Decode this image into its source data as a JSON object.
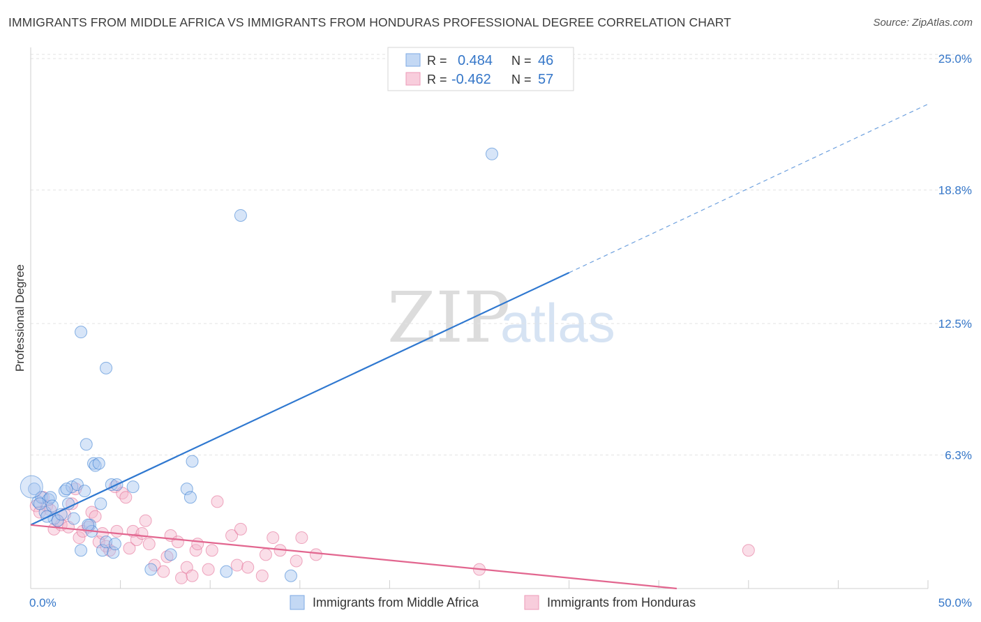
{
  "title": "IMMIGRANTS FROM MIDDLE AFRICA VS IMMIGRANTS FROM HONDURAS PROFESSIONAL DEGREE CORRELATION CHART",
  "source": "Source: ZipAtlas.com",
  "watermark": {
    "part1": "ZIP",
    "part2": "atlas"
  },
  "colors": {
    "blue": "#2f78d0",
    "blue_fill": "#a7c6ef",
    "pink": "#e2668f",
    "pink_fill": "#f3b6cb",
    "value_text": "#3476c8"
  },
  "legend_box": {
    "rows": [
      {
        "r_label": "R =",
        "r_value": "0.484",
        "n_label": "N =",
        "n_value": "46"
      },
      {
        "r_label": "R =",
        "r_value": "-0.462",
        "n_label": "N =",
        "n_value": "57"
      }
    ]
  },
  "chart_data": {
    "type": "scatter",
    "title": "IMMIGRANTS FROM MIDDLE AFRICA VS IMMIGRANTS FROM HONDURAS PROFESSIONAL DEGREE CORRELATION CHART",
    "xlabel": "",
    "ylabel": "Professional Degree",
    "xlim": [
      0,
      50
    ],
    "ylim": [
      0,
      25
    ],
    "x_tick_labels": [
      {
        "value": 0,
        "label": "0.0%"
      },
      {
        "value": 50,
        "label": "50.0%"
      }
    ],
    "y_tick_labels": [
      {
        "value": 6.3,
        "label": "6.3%"
      },
      {
        "value": 12.5,
        "label": "12.5%"
      },
      {
        "value": 18.8,
        "label": "18.8%"
      },
      {
        "value": 25.0,
        "label": "25.0%"
      }
    ],
    "grid": true,
    "legend_position": "bottom",
    "series": [
      {
        "name": "Immigrants from Middle Africa",
        "color": "#2f78d0",
        "R": 0.484,
        "N": 46,
        "trendline": {
          "x": [
            0,
            30
          ],
          "y": [
            3.0,
            14.9
          ],
          "extended_to": [
            50,
            22.85
          ]
        },
        "points": [
          [
            0.2,
            4.7
          ],
          [
            0.4,
            4.1
          ],
          [
            0.6,
            4.3
          ],
          [
            0.8,
            3.6
          ],
          [
            1.0,
            4.2
          ],
          [
            1.1,
            4.3
          ],
          [
            1.3,
            3.3
          ],
          [
            1.5,
            3.2
          ],
          [
            1.7,
            3.5
          ],
          [
            1.9,
            4.6
          ],
          [
            2.1,
            4.0
          ],
          [
            2.3,
            4.8
          ],
          [
            2.4,
            3.3
          ],
          [
            2.6,
            4.9
          ],
          [
            2.8,
            1.8
          ],
          [
            3.0,
            4.6
          ],
          [
            3.1,
            6.8
          ],
          [
            3.3,
            3.0
          ],
          [
            3.4,
            2.7
          ],
          [
            3.5,
            5.9
          ],
          [
            3.6,
            5.8
          ],
          [
            3.8,
            5.9
          ],
          [
            3.9,
            4.0
          ],
          [
            4.0,
            1.8
          ],
          [
            4.2,
            2.2
          ],
          [
            4.5,
            4.9
          ],
          [
            4.6,
            1.7
          ],
          [
            4.7,
            2.1
          ],
          [
            5.7,
            4.8
          ],
          [
            6.7,
            0.9
          ],
          [
            7.8,
            1.6
          ],
          [
            8.7,
            4.7
          ],
          [
            8.9,
            4.3
          ],
          [
            9.0,
            6.0
          ],
          [
            10.9,
            0.8
          ],
          [
            14.5,
            0.6
          ],
          [
            2.8,
            12.1
          ],
          [
            4.2,
            10.4
          ],
          [
            11.7,
            17.6
          ],
          [
            25.7,
            20.5
          ],
          [
            0.5,
            4.0
          ],
          [
            0.9,
            3.4
          ],
          [
            1.2,
            3.9
          ],
          [
            2.0,
            4.7
          ],
          [
            3.2,
            3.0
          ],
          [
            4.8,
            4.9
          ]
        ]
      },
      {
        "name": "Immigrants from Honduras",
        "color": "#e2668f",
        "R": -0.462,
        "N": 57,
        "trendline": {
          "x": [
            0,
            36
          ],
          "y": [
            3.0,
            0.0
          ]
        },
        "points": [
          [
            0.3,
            3.9
          ],
          [
            0.5,
            3.6
          ],
          [
            0.7,
            4.3
          ],
          [
            0.9,
            3.9
          ],
          [
            1.1,
            3.7
          ],
          [
            1.3,
            2.8
          ],
          [
            1.5,
            3.2
          ],
          [
            1.7,
            3.0
          ],
          [
            1.9,
            3.5
          ],
          [
            2.1,
            2.9
          ],
          [
            2.3,
            4.0
          ],
          [
            2.5,
            4.7
          ],
          [
            2.7,
            2.4
          ],
          [
            2.9,
            2.7
          ],
          [
            3.2,
            2.9
          ],
          [
            3.4,
            3.6
          ],
          [
            3.6,
            3.4
          ],
          [
            3.8,
            2.2
          ],
          [
            4.0,
            2.6
          ],
          [
            4.2,
            2.0
          ],
          [
            4.4,
            1.8
          ],
          [
            4.7,
            4.8
          ],
          [
            4.8,
            2.7
          ],
          [
            5.1,
            4.5
          ],
          [
            5.3,
            4.3
          ],
          [
            5.5,
            1.9
          ],
          [
            5.7,
            2.7
          ],
          [
            5.9,
            2.3
          ],
          [
            6.2,
            2.6
          ],
          [
            6.4,
            3.2
          ],
          [
            6.6,
            2.1
          ],
          [
            6.9,
            1.1
          ],
          [
            7.4,
            0.8
          ],
          [
            7.6,
            1.5
          ],
          [
            7.8,
            2.5
          ],
          [
            8.2,
            2.2
          ],
          [
            8.4,
            0.5
          ],
          [
            8.7,
            1.0
          ],
          [
            9.0,
            0.6
          ],
          [
            9.2,
            1.8
          ],
          [
            9.3,
            2.1
          ],
          [
            9.9,
            0.9
          ],
          [
            10.1,
            1.8
          ],
          [
            10.4,
            4.1
          ],
          [
            11.2,
            2.5
          ],
          [
            11.5,
            1.1
          ],
          [
            11.7,
            2.8
          ],
          [
            12.1,
            1.0
          ],
          [
            12.9,
            0.6
          ],
          [
            13.1,
            1.6
          ],
          [
            13.5,
            2.4
          ],
          [
            13.9,
            1.8
          ],
          [
            14.8,
            1.3
          ],
          [
            15.1,
            2.4
          ],
          [
            15.9,
            1.6
          ],
          [
            25.0,
            0.9
          ],
          [
            40.0,
            1.8
          ]
        ]
      }
    ]
  },
  "bottom_legend": [
    {
      "label": "Immigrants from Middle Africa"
    },
    {
      "label": "Immigrants from Honduras"
    }
  ]
}
